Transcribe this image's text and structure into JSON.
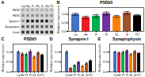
{
  "chart_data": [
    {
      "type": "blot",
      "annotations": [
        "A"
      ],
      "categories": [
        "Con",
        "Hey",
        "Pi",
        "Pilo",
        "SL",
        "Silo",
        "PC"
      ],
      "color": "#d8d8d8",
      "series": [
        {
          "name": "PSD93",
          "colors": [
            "#b0b0b0",
            "#b0b0b0",
            "#b0b0b0",
            "#b0b0b0",
            "#b0b0b0",
            "#b0b0b0",
            "#b0b0b0"
          ]
        },
        {
          "name": "PSD95",
          "colors": [
            "#909090",
            "#909090",
            "#909090",
            "#909090",
            "#909090",
            "#909090",
            "#909090"
          ]
        },
        {
          "name": "Synapsin I",
          "colors": [
            "#909090",
            "#202020",
            "#202020",
            "#202020",
            "#202020",
            "#202020",
            "#909090"
          ]
        },
        {
          "name": "Synaptophysin",
          "colors": [
            "#606060",
            "#606060",
            "#606060",
            "#606060",
            "#606060",
            "#606060",
            "#606060"
          ]
        },
        {
          "name": "β-actin",
          "colors": [
            "#303030",
            "#303030",
            "#303030",
            "#303030",
            "#303030",
            "#303030",
            "#303030"
          ]
        }
      ]
    },
    {
      "type": "bar",
      "title": "PSD93",
      "annotations": [
        "B"
      ],
      "categories": [
        "Co",
        "He",
        "Pi",
        "Pi",
        "SL",
        "Si",
        "PC"
      ],
      "values": [
        1.0,
        0.82,
        0.9,
        1.05,
        0.88,
        1.08,
        0.92
      ],
      "errors": [
        0.06,
        0.07,
        0.08,
        0.09,
        0.06,
        0.08,
        0.06
      ],
      "colors": [
        "#4472c4",
        "#ed1c24",
        "#00b050",
        "#7030a0",
        "#ff7f00",
        "#a0522d",
        "#000000"
      ],
      "ylabel": "Relative expression",
      "ylim": [
        0,
        1.4
      ],
      "yticks": [
        0,
        0.5,
        1
      ]
    },
    {
      "type": "bar",
      "title": "PSD95",
      "annotations": [
        "C"
      ],
      "categories": [
        "Co",
        "He",
        "Pi",
        "Pi",
        "SL",
        "Si",
        "PC"
      ],
      "values": [
        1.0,
        0.9,
        0.88,
        1.02,
        0.75,
        0.95,
        0.85
      ],
      "errors": [
        0.05,
        0.07,
        0.06,
        0.09,
        0.05,
        0.06,
        0.04
      ],
      "colors": [
        "#4472c4",
        "#ed1c24",
        "#00b050",
        "#7030a0",
        "#ff7f00",
        "#a0522d",
        "#000000"
      ],
      "ylabel": "Relative expression",
      "ylim": [
        0,
        1.4
      ],
      "yticks": [
        0,
        0.5,
        1
      ]
    },
    {
      "type": "bar",
      "title": "Synapsin I",
      "annotations": [
        "D"
      ],
      "categories": [
        "Co",
        "He",
        "Pi",
        "Pi",
        "SL",
        "Si",
        "PC"
      ],
      "values": [
        1.0,
        0.18,
        0.32,
        0.48,
        0.28,
        0.42,
        0.55
      ],
      "errors": [
        0.06,
        0.03,
        0.04,
        0.05,
        0.04,
        0.05,
        0.06
      ],
      "colors": [
        "#4472c4",
        "#ed1c24",
        "#00b050",
        "#7030a0",
        "#ff7f00",
        "#a0522d",
        "#000000"
      ],
      "ylabel": "Relative expression",
      "ylim": [
        0,
        1.4
      ],
      "yticks": [
        0,
        0.5,
        1
      ]
    },
    {
      "type": "bar",
      "title": "Synaptophysin",
      "annotations": [
        "E"
      ],
      "categories": [
        "Co",
        "He",
        "Pi",
        "Pi",
        "SL",
        "Si",
        "PC"
      ],
      "values": [
        1.0,
        0.95,
        0.98,
        1.05,
        0.88,
        1.02,
        0.93
      ],
      "errors": [
        0.04,
        0.05,
        0.06,
        0.07,
        0.05,
        0.06,
        0.04
      ],
      "colors": [
        "#4472c4",
        "#ed1c24",
        "#00b050",
        "#7030a0",
        "#ff7f00",
        "#a0522d",
        "#000000"
      ],
      "ylabel": "Relative expression",
      "ylim": [
        0,
        1.4
      ],
      "yticks": [
        0,
        0.5,
        1
      ]
    }
  ]
}
